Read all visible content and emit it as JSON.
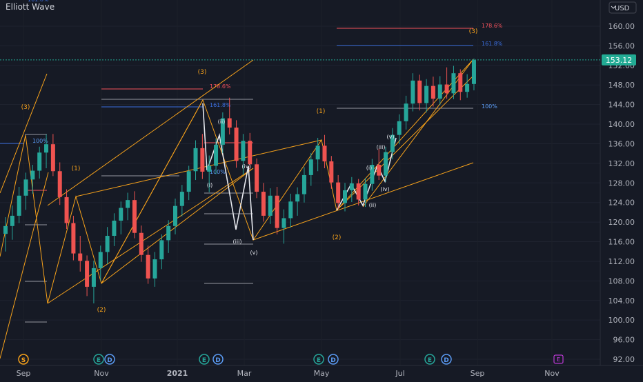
{
  "chart_data": {
    "type": "candlestick",
    "title": "Elliott Wave",
    "currency": "USD",
    "currency_menu": "USD",
    "last_price": 153.12,
    "x_labels": [
      "Sep",
      "Nov",
      "2021",
      "Mar",
      "May",
      "Jul",
      "Sep",
      "Nov"
    ],
    "y_ticks": [
      92,
      96,
      100,
      104,
      108,
      112,
      116,
      120,
      124,
      128,
      132,
      136,
      140,
      144,
      148,
      152,
      156,
      160
    ],
    "ylim": [
      90.5,
      164
    ],
    "candles": [
      {
        "t": 0.0,
        "o": 117.6,
        "h": 121.0,
        "l": 114.0,
        "c": 119.2
      },
      {
        "t": 1.6,
        "o": 119.2,
        "h": 123.4,
        "l": 116.4,
        "c": 121.3
      },
      {
        "t": 3.2,
        "o": 121.3,
        "h": 127.2,
        "l": 119.8,
        "c": 125.4
      },
      {
        "t": 4.8,
        "o": 125.4,
        "h": 130.1,
        "l": 122.5,
        "c": 128.7
      },
      {
        "t": 6.4,
        "o": 128.7,
        "h": 131.7,
        "l": 125.8,
        "c": 130.5
      },
      {
        "t": 8.0,
        "o": 130.5,
        "h": 135.4,
        "l": 128.9,
        "c": 134.2
      },
      {
        "t": 9.6,
        "o": 134.2,
        "h": 137.9,
        "l": 131.0,
        "c": 135.9
      },
      {
        "t": 11.2,
        "o": 135.9,
        "h": 138.0,
        "l": 129.4,
        "c": 130.4
      },
      {
        "t": 12.8,
        "o": 130.4,
        "h": 132.2,
        "l": 123.5,
        "c": 125.1
      },
      {
        "t": 14.4,
        "o": 125.1,
        "h": 126.7,
        "l": 118.6,
        "c": 119.8
      },
      {
        "t": 16.0,
        "o": 119.8,
        "h": 121.3,
        "l": 112.2,
        "c": 113.6
      },
      {
        "t": 17.6,
        "o": 113.6,
        "h": 117.2,
        "l": 109.9,
        "c": 112.1
      },
      {
        "t": 19.2,
        "o": 112.1,
        "h": 113.2,
        "l": 104.9,
        "c": 106.8
      },
      {
        "t": 20.8,
        "o": 106.8,
        "h": 112.1,
        "l": 103.4,
        "c": 110.6
      },
      {
        "t": 22.4,
        "o": 110.6,
        "h": 115.2,
        "l": 108.1,
        "c": 113.9
      },
      {
        "t": 24.0,
        "o": 113.9,
        "h": 119.0,
        "l": 111.4,
        "c": 117.2
      },
      {
        "t": 25.6,
        "o": 117.2,
        "h": 121.8,
        "l": 115.1,
        "c": 120.3
      },
      {
        "t": 27.2,
        "o": 120.3,
        "h": 124.2,
        "l": 117.5,
        "c": 122.9
      },
      {
        "t": 28.8,
        "o": 122.9,
        "h": 126.0,
        "l": 120.4,
        "c": 124.5
      },
      {
        "t": 30.4,
        "o": 124.5,
        "h": 126.3,
        "l": 116.7,
        "c": 117.8
      },
      {
        "t": 32.0,
        "o": 117.8,
        "h": 119.3,
        "l": 111.9,
        "c": 113.3
      },
      {
        "t": 33.6,
        "o": 113.3,
        "h": 115.2,
        "l": 107.4,
        "c": 108.5
      },
      {
        "t": 35.2,
        "o": 108.5,
        "h": 113.9,
        "l": 106.8,
        "c": 112.4
      },
      {
        "t": 36.8,
        "o": 112.4,
        "h": 117.5,
        "l": 110.4,
        "c": 116.3
      },
      {
        "t": 38.4,
        "o": 116.3,
        "h": 120.4,
        "l": 113.7,
        "c": 119.2
      },
      {
        "t": 40.0,
        "o": 119.2,
        "h": 124.8,
        "l": 117.5,
        "c": 123.3
      },
      {
        "t": 41.6,
        "o": 123.3,
        "h": 127.6,
        "l": 121.2,
        "c": 126.2
      },
      {
        "t": 43.2,
        "o": 126.2,
        "h": 131.5,
        "l": 124.5,
        "c": 130.4
      },
      {
        "t": 44.8,
        "o": 130.4,
        "h": 136.7,
        "l": 128.6,
        "c": 135.1
      },
      {
        "t": 46.4,
        "o": 135.1,
        "h": 138.0,
        "l": 128.8,
        "c": 130.3
      },
      {
        "t": 48.0,
        "o": 130.3,
        "h": 133.6,
        "l": 126.1,
        "c": 131.5
      },
      {
        "t": 49.6,
        "o": 131.5,
        "h": 137.1,
        "l": 129.8,
        "c": 135.8
      },
      {
        "t": 51.2,
        "o": 135.8,
        "h": 142.4,
        "l": 134.1,
        "c": 141.2
      },
      {
        "t": 52.8,
        "o": 141.2,
        "h": 145.4,
        "l": 137.9,
        "c": 139.3
      },
      {
        "t": 54.4,
        "o": 139.3,
        "h": 140.8,
        "l": 131.1,
        "c": 132.5
      },
      {
        "t": 56.0,
        "o": 132.5,
        "h": 138.0,
        "l": 129.6,
        "c": 136.6
      },
      {
        "t": 57.6,
        "o": 136.6,
        "h": 138.2,
        "l": 130.7,
        "c": 131.8
      },
      {
        "t": 59.2,
        "o": 131.8,
        "h": 133.0,
        "l": 124.9,
        "c": 126.2
      },
      {
        "t": 60.8,
        "o": 126.2,
        "h": 128.0,
        "l": 120.1,
        "c": 121.3
      },
      {
        "t": 62.4,
        "o": 121.3,
        "h": 126.9,
        "l": 119.6,
        "c": 125.4
      },
      {
        "t": 64.0,
        "o": 125.4,
        "h": 127.2,
        "l": 117.5,
        "c": 118.8
      },
      {
        "t": 65.6,
        "o": 118.8,
        "h": 122.6,
        "l": 115.6,
        "c": 120.8
      },
      {
        "t": 67.2,
        "o": 120.8,
        "h": 125.8,
        "l": 118.9,
        "c": 124.2
      },
      {
        "t": 68.8,
        "o": 124.2,
        "h": 127.1,
        "l": 121.3,
        "c": 125.7
      },
      {
        "t": 70.4,
        "o": 125.7,
        "h": 131.2,
        "l": 124.0,
        "c": 129.6
      },
      {
        "t": 72.0,
        "o": 129.6,
        "h": 134.1,
        "l": 127.4,
        "c": 132.8
      },
      {
        "t": 73.6,
        "o": 132.8,
        "h": 137.2,
        "l": 130.4,
        "c": 135.6
      },
      {
        "t": 75.2,
        "o": 135.6,
        "h": 137.8,
        "l": 131.0,
        "c": 132.4
      },
      {
        "t": 76.8,
        "o": 132.4,
        "h": 133.5,
        "l": 126.8,
        "c": 128.1
      },
      {
        "t": 78.4,
        "o": 128.1,
        "h": 129.6,
        "l": 122.7,
        "c": 123.9
      },
      {
        "t": 80.0,
        "o": 123.9,
        "h": 128.0,
        "l": 122.2,
        "c": 126.5
      },
      {
        "t": 81.6,
        "o": 126.5,
        "h": 129.2,
        "l": 124.1,
        "c": 127.9
      },
      {
        "t": 83.2,
        "o": 127.9,
        "h": 128.8,
        "l": 123.4,
        "c": 124.6
      },
      {
        "t": 84.8,
        "o": 124.6,
        "h": 129.0,
        "l": 123.1,
        "c": 127.8
      },
      {
        "t": 86.4,
        "o": 127.8,
        "h": 132.9,
        "l": 126.4,
        "c": 131.7
      },
      {
        "t": 88.0,
        "o": 131.7,
        "h": 135.0,
        "l": 128.6,
        "c": 129.5
      },
      {
        "t": 89.6,
        "o": 129.5,
        "h": 135.4,
        "l": 128.2,
        "c": 134.3
      },
      {
        "t": 91.2,
        "o": 134.3,
        "h": 139.2,
        "l": 132.8,
        "c": 137.8
      },
      {
        "t": 92.8,
        "o": 137.8,
        "h": 142.0,
        "l": 135.9,
        "c": 140.6
      },
      {
        "t": 94.4,
        "o": 140.6,
        "h": 145.8,
        "l": 138.9,
        "c": 144.2
      },
      {
        "t": 96.0,
        "o": 144.2,
        "h": 150.4,
        "l": 142.6,
        "c": 148.9
      },
      {
        "t": 97.6,
        "o": 148.9,
        "h": 150.1,
        "l": 142.8,
        "c": 144.3
      },
      {
        "t": 99.2,
        "o": 144.3,
        "h": 149.2,
        "l": 142.4,
        "c": 147.8
      },
      {
        "t": 100.8,
        "o": 147.8,
        "h": 149.7,
        "l": 143.6,
        "c": 145.2
      },
      {
        "t": 102.4,
        "o": 145.2,
        "h": 149.8,
        "l": 143.9,
        "c": 148.1
      },
      {
        "t": 104.0,
        "o": 148.1,
        "h": 151.6,
        "l": 145.2,
        "c": 146.3
      },
      {
        "t": 105.6,
        "o": 146.3,
        "h": 151.9,
        "l": 145.1,
        "c": 150.4
      },
      {
        "t": 107.2,
        "o": 150.4,
        "h": 151.2,
        "l": 144.9,
        "c": 146.6
      },
      {
        "t": 108.8,
        "o": 146.6,
        "h": 150.2,
        "l": 145.4,
        "c": 148.2
      },
      {
        "t": 110.4,
        "o": 148.2,
        "h": 153.4,
        "l": 146.9,
        "c": 153.1
      }
    ],
    "annotations": {
      "primary_labels": [
        "(3)",
        "(1)",
        "(2)",
        "(3)",
        "(1)",
        "(2)",
        "(3)"
      ],
      "minor_labels": [
        "(i)",
        "(ii)",
        "(iii)",
        "(iv)",
        "(v)",
        "(i)",
        "(ii)",
        "(iii)",
        "(iv)",
        "(v)"
      ],
      "fib_labels": [
        "178.6%",
        "161.8%",
        "100%",
        "178.6%",
        "161.8%",
        "100%",
        "100%",
        "100%",
        "161.8%"
      ]
    },
    "events": [
      "S",
      "E",
      "D",
      "E",
      "D",
      "E",
      "D",
      "E",
      "D",
      "E",
      "D"
    ],
    "colors": {
      "bg": "#161a25",
      "up": "#26a69a",
      "down": "#ef5350",
      "wave": "#f7a21b",
      "white": "#e6e8ee",
      "fib_red": "#f4515b",
      "fib_blue": "#3b6fe0",
      "axis_text": "#b2b5be",
      "price_tag": "#22ab94"
    }
  }
}
